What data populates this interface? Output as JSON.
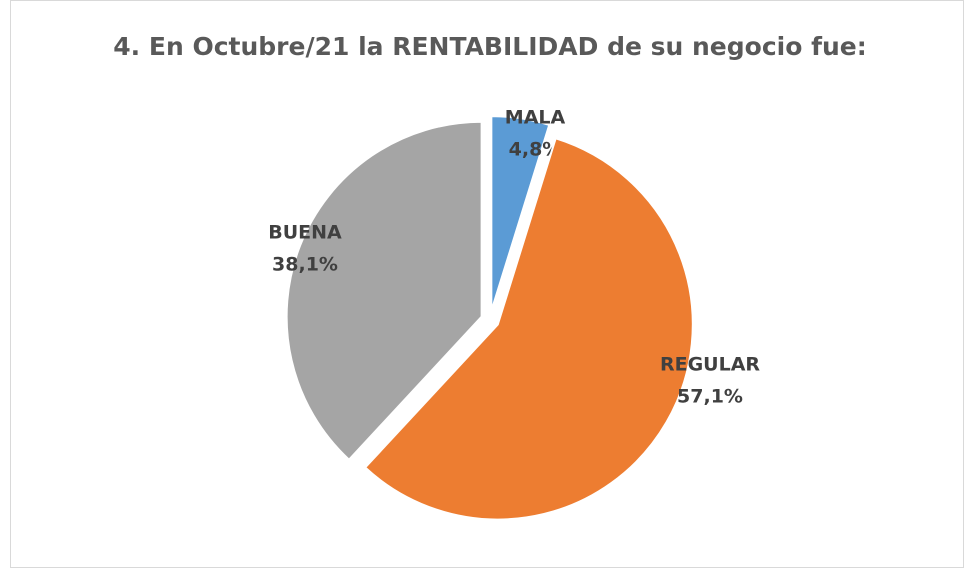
{
  "chart_data": {
    "type": "pie",
    "title": "4. En Octubre/21 la RENTABILIDAD de su negocio fue:",
    "categories": [
      "MALA",
      "REGULAR",
      "BUENA"
    ],
    "values": [
      4.8,
      57.1,
      38.1
    ],
    "value_labels": [
      "4,8%",
      "57,1%",
      "38,1%"
    ],
    "colors": [
      "#5b9bd5",
      "#ed7d31",
      "#a5a5a5"
    ]
  }
}
